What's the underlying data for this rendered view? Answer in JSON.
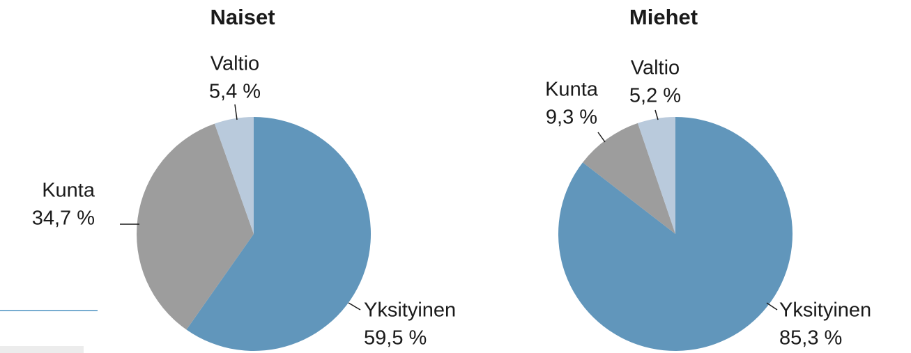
{
  "chart_data": [
    {
      "type": "pie",
      "title": "Naiset",
      "categories": [
        "Yksityinen",
        "Kunta",
        "Valtio"
      ],
      "values": [
        59.5,
        34.7,
        5.4
      ],
      "value_labels": [
        "59,5 %",
        "34,7 %",
        "5,4 %"
      ],
      "colors": [
        "#6196bb",
        "#9d9d9d",
        "#b9cadc"
      ]
    },
    {
      "type": "pie",
      "title": "Miehet",
      "categories": [
        "Yksityinen",
        "Kunta",
        "Valtio"
      ],
      "values": [
        85.3,
        9.3,
        5.2
      ],
      "value_labels": [
        "85,3 %",
        "9,3 %",
        "5,2 %"
      ],
      "colors": [
        "#6196bb",
        "#9d9d9d",
        "#b9cadc"
      ]
    }
  ]
}
